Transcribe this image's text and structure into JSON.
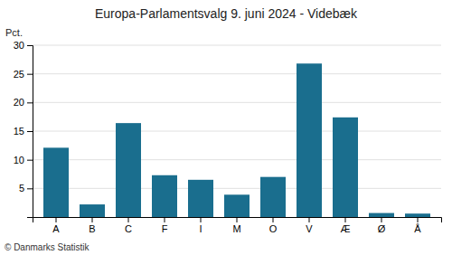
{
  "chart_data": {
    "type": "bar",
    "title": "Europa-Parlamentsvalg 9. juni 2024 - Videbæk",
    "categories": [
      "A",
      "B",
      "C",
      "F",
      "I",
      "M",
      "O",
      "V",
      "Æ",
      "Ø",
      "Å"
    ],
    "values": [
      12.1,
      2.2,
      16.4,
      7.3,
      6.5,
      3.9,
      7.0,
      26.8,
      17.4,
      0.7,
      0.6
    ],
    "color": "#1a6e8e",
    "ylabel": "Pct.",
    "footer": "© Danmarks Statistik",
    "ylim": [
      0,
      30
    ],
    "yticks": [
      5,
      10,
      15,
      20,
      25,
      30
    ],
    "grid": true
  }
}
